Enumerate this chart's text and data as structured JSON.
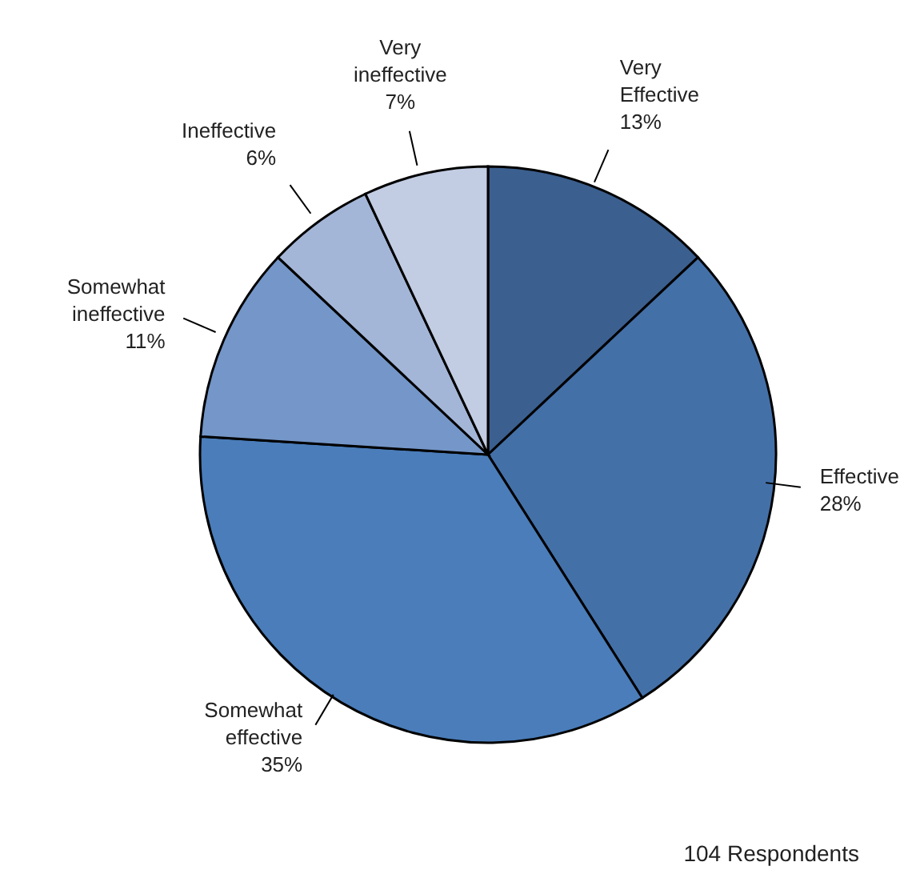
{
  "chart_data": {
    "type": "pie",
    "categories": [
      "Very Effective",
      "Effective",
      "Somewhat effective",
      "Somewhat ineffective",
      "Ineffective",
      "Very ineffective"
    ],
    "values": [
      13,
      28,
      35,
      11,
      6,
      7
    ],
    "value_labels": [
      "13%",
      "28%",
      "35%",
      "11%",
      "6%",
      "7%"
    ],
    "colors": [
      "#3b5f8e",
      "#4470a8",
      "#4a7dba",
      "#7496c8",
      "#a4b6d7",
      "#c2cde3"
    ],
    "annotations": [
      "104 Respondents"
    ]
  }
}
